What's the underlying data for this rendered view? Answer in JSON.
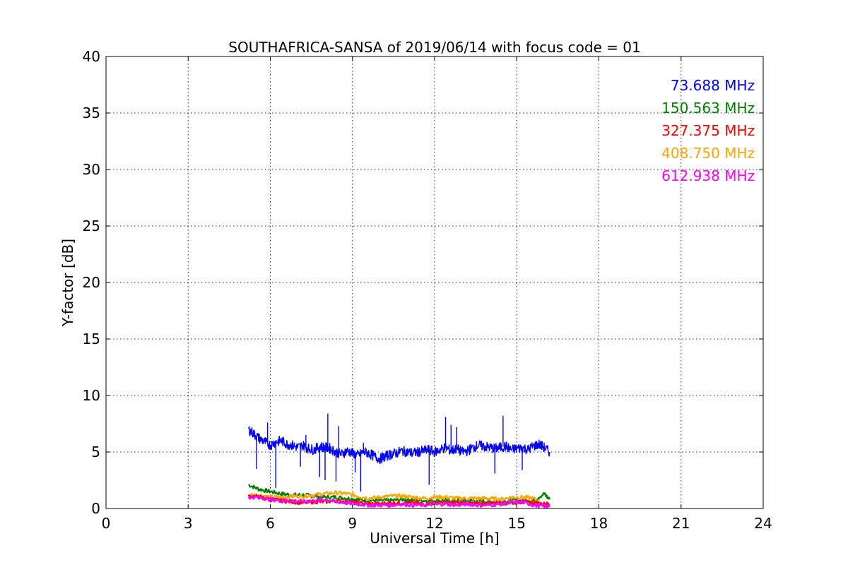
{
  "chart_data": {
    "type": "line",
    "title": "SOUTHAFRICA-SANSA of 2019/06/14 with focus code = 01",
    "xlabel": "Universal Time [h]",
    "ylabel": "Y-factor [dB]",
    "xlim": [
      0,
      24
    ],
    "ylim": [
      0,
      40
    ],
    "xticks": [
      0,
      3,
      6,
      9,
      12,
      15,
      18,
      21,
      24
    ],
    "yticks": [
      0,
      5,
      10,
      15,
      20,
      25,
      30,
      35,
      40
    ],
    "grid": true,
    "legend_position": "top-right",
    "series": [
      {
        "name": "73.688 MHz",
        "color": "#0000ff",
        "x": [
          5.2,
          5.4,
          5.6,
          5.8,
          6.0,
          6.2,
          6.4,
          6.6,
          6.8,
          7.0,
          7.2,
          7.4,
          7.6,
          7.8,
          8.0,
          8.2,
          8.4,
          8.6,
          8.8,
          9.0,
          9.2,
          9.4,
          9.6,
          9.8,
          10.0,
          10.2,
          10.4,
          10.6,
          10.8,
          11.0,
          11.2,
          11.4,
          11.6,
          11.8,
          12.0,
          12.2,
          12.4,
          12.6,
          12.8,
          13.0,
          13.2,
          13.4,
          13.6,
          13.8,
          14.0,
          14.2,
          14.4,
          14.6,
          14.8,
          15.0,
          15.2,
          15.4,
          15.6,
          15.8,
          16.0,
          16.2
        ],
        "y": [
          7.0,
          6.6,
          6.2,
          5.9,
          5.6,
          5.9,
          6.0,
          5.7,
          5.6,
          5.4,
          5.6,
          5.3,
          5.2,
          5.5,
          5.4,
          5.3,
          5.0,
          4.8,
          5.1,
          4.9,
          4.7,
          5.0,
          4.9,
          4.6,
          4.4,
          4.6,
          4.8,
          4.9,
          5.1,
          5.0,
          4.9,
          5.0,
          5.1,
          5.2,
          5.0,
          5.2,
          5.4,
          5.1,
          5.3,
          5.0,
          5.1,
          5.4,
          5.6,
          5.5,
          5.4,
          5.3,
          5.4,
          5.5,
          5.2,
          5.3,
          5.4,
          5.2,
          5.5,
          5.7,
          5.4,
          5.0
        ],
        "spikes": [
          {
            "x": 5.5,
            "y": 3.5
          },
          {
            "x": 5.9,
            "y": 7.6
          },
          {
            "x": 6.2,
            "y": 1.8
          },
          {
            "x": 7.1,
            "y": 3.7
          },
          {
            "x": 7.3,
            "y": 6.5
          },
          {
            "x": 7.8,
            "y": 2.8
          },
          {
            "x": 8.0,
            "y": 2.5
          },
          {
            "x": 8.1,
            "y": 8.4
          },
          {
            "x": 8.4,
            "y": 2.4
          },
          {
            "x": 8.5,
            "y": 7.3
          },
          {
            "x": 9.1,
            "y": 3.2
          },
          {
            "x": 9.3,
            "y": 1.5
          },
          {
            "x": 9.4,
            "y": 5.8
          },
          {
            "x": 11.8,
            "y": 2.1
          },
          {
            "x": 12.4,
            "y": 8.1
          },
          {
            "x": 12.6,
            "y": 7.4
          },
          {
            "x": 12.8,
            "y": 7.2
          },
          {
            "x": 14.2,
            "y": 3.1
          },
          {
            "x": 14.5,
            "y": 8.2
          },
          {
            "x": 15.2,
            "y": 3.4
          }
        ]
      },
      {
        "name": "150.563 MHz",
        "color": "#008000",
        "x": [
          5.2,
          5.6,
          6.0,
          6.4,
          6.8,
          7.2,
          7.6,
          8.0,
          8.4,
          8.8,
          9.2,
          9.6,
          10.0,
          10.4,
          10.8,
          11.2,
          11.6,
          12.0,
          12.4,
          12.8,
          13.2,
          13.6,
          14.0,
          14.4,
          14.8,
          15.2,
          15.6,
          16.0,
          16.2
        ],
        "y": [
          2.1,
          1.7,
          1.5,
          1.3,
          1.2,
          1.2,
          1.1,
          1.0,
          1.0,
          0.9,
          0.8,
          0.7,
          0.7,
          0.7,
          0.8,
          0.8,
          0.7,
          0.7,
          0.7,
          0.7,
          0.7,
          0.7,
          0.6,
          0.6,
          0.7,
          0.7,
          0.7,
          1.3,
          0.8
        ]
      },
      {
        "name": "327.375 MHz",
        "color": "#ff0000",
        "x": [
          5.2,
          5.6,
          6.0,
          6.4,
          6.8,
          7.2,
          7.6,
          8.0,
          8.4,
          8.8,
          9.2,
          9.6,
          10.0,
          10.4,
          10.8,
          11.2,
          11.6,
          12.0,
          12.4,
          12.8,
          13.2,
          13.6,
          14.0,
          14.4,
          14.8,
          15.2,
          15.6,
          16.0,
          16.2
        ],
        "y": [
          1.1,
          1.0,
          0.8,
          0.7,
          0.6,
          0.5,
          0.6,
          0.6,
          0.7,
          0.6,
          0.5,
          0.4,
          0.4,
          0.5,
          0.5,
          0.5,
          0.4,
          0.5,
          0.5,
          0.5,
          0.5,
          0.4,
          0.5,
          0.5,
          0.5,
          0.6,
          0.5,
          0.4,
          0.4
        ]
      },
      {
        "name": "408.750 MHz",
        "color": "#ffa500",
        "x": [
          5.2,
          5.6,
          6.0,
          6.4,
          6.8,
          7.2,
          7.6,
          8.0,
          8.4,
          8.8,
          9.2,
          9.6,
          10.0,
          10.4,
          10.8,
          11.2,
          11.6,
          12.0,
          12.4,
          12.8,
          13.2,
          13.6,
          14.0,
          14.4,
          14.8,
          15.2,
          15.6,
          16.0,
          16.2
        ],
        "y": [
          1.2,
          1.2,
          1.0,
          1.0,
          1.1,
          1.1,
          1.2,
          1.3,
          1.4,
          1.3,
          1.1,
          0.9,
          1.0,
          1.1,
          1.1,
          1.0,
          0.9,
          1.0,
          1.0,
          0.9,
          0.9,
          0.9,
          0.9,
          0.8,
          1.0,
          1.0,
          0.9,
          0.3,
          0.3
        ]
      },
      {
        "name": "612.938 MHz",
        "color": "#ff00ff",
        "x": [
          5.2,
          5.6,
          6.0,
          6.4,
          6.8,
          7.2,
          7.6,
          8.0,
          8.4,
          8.8,
          9.2,
          9.6,
          10.0,
          10.4,
          10.8,
          11.2,
          11.6,
          12.0,
          12.4,
          12.8,
          13.2,
          13.6,
          14.0,
          14.4,
          14.8,
          15.2,
          15.6,
          16.0,
          16.2
        ],
        "y": [
          1.0,
          1.0,
          0.8,
          0.7,
          0.7,
          0.6,
          0.7,
          0.8,
          0.6,
          0.5,
          0.4,
          0.3,
          0.3,
          0.3,
          0.4,
          0.3,
          0.3,
          0.4,
          0.4,
          0.3,
          0.4,
          0.3,
          0.3,
          0.4,
          0.5,
          0.6,
          0.3,
          0.2,
          0.2
        ]
      }
    ]
  }
}
